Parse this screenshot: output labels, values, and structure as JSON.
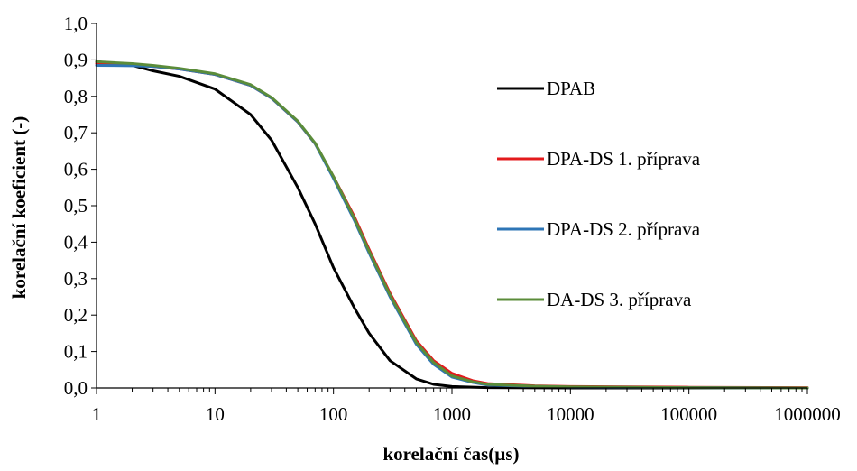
{
  "chart_data": {
    "type": "line",
    "title": "",
    "xlabel": "korelační čas(µs)",
    "ylabel": "korelační koeficient (-)",
    "x_scale": "log",
    "xlim": [
      1,
      1000000
    ],
    "ylim": [
      0,
      1
    ],
    "x_ticks": [
      "1",
      "10",
      "100",
      "1000",
      "10000",
      "100000",
      "1000000"
    ],
    "y_ticks": [
      "0,0",
      "0,1",
      "0,2",
      "0,3",
      "0,4",
      "0,5",
      "0,6",
      "0,7",
      "0,8",
      "0,9",
      "1,0"
    ],
    "grid": false,
    "legend_position": "right",
    "series": [
      {
        "name": "DPAB",
        "color": "#000000",
        "points": [
          [
            1,
            0.895
          ],
          [
            2,
            0.885
          ],
          [
            3,
            0.87
          ],
          [
            5,
            0.855
          ],
          [
            10,
            0.82
          ],
          [
            20,
            0.75
          ],
          [
            30,
            0.68
          ],
          [
            50,
            0.55
          ],
          [
            70,
            0.45
          ],
          [
            100,
            0.33
          ],
          [
            150,
            0.22
          ],
          [
            200,
            0.15
          ],
          [
            300,
            0.075
          ],
          [
            500,
            0.025
          ],
          [
            700,
            0.01
          ],
          [
            1000,
            0.004
          ],
          [
            2000,
            0.001
          ],
          [
            10000,
            0.0
          ],
          [
            1000000,
            0.0
          ]
        ]
      },
      {
        "name": "DPA-DS 1. příprava",
        "color": "#e31a1c",
        "points": [
          [
            1,
            0.89
          ],
          [
            2,
            0.887
          ],
          [
            3,
            0.882
          ],
          [
            5,
            0.875
          ],
          [
            10,
            0.86
          ],
          [
            20,
            0.83
          ],
          [
            30,
            0.795
          ],
          [
            50,
            0.73
          ],
          [
            70,
            0.67
          ],
          [
            100,
            0.58
          ],
          [
            150,
            0.47
          ],
          [
            200,
            0.38
          ],
          [
            300,
            0.26
          ],
          [
            500,
            0.13
          ],
          [
            700,
            0.075
          ],
          [
            1000,
            0.04
          ],
          [
            1500,
            0.02
          ],
          [
            2000,
            0.012
          ],
          [
            5000,
            0.006
          ],
          [
            10000,
            0.004
          ],
          [
            100000,
            0.002
          ],
          [
            1000000,
            0.001
          ]
        ]
      },
      {
        "name": "DPA-DS 2. příprava",
        "color": "#2e75b6",
        "points": [
          [
            1,
            0.885
          ],
          [
            2,
            0.884
          ],
          [
            3,
            0.882
          ],
          [
            5,
            0.875
          ],
          [
            10,
            0.86
          ],
          [
            20,
            0.83
          ],
          [
            30,
            0.795
          ],
          [
            50,
            0.73
          ],
          [
            70,
            0.67
          ],
          [
            100,
            0.575
          ],
          [
            150,
            0.46
          ],
          [
            200,
            0.37
          ],
          [
            300,
            0.25
          ],
          [
            500,
            0.12
          ],
          [
            700,
            0.065
          ],
          [
            1000,
            0.03
          ],
          [
            1500,
            0.015
          ],
          [
            2000,
            0.008
          ],
          [
            5000,
            0.004
          ],
          [
            10000,
            0.002
          ],
          [
            100000,
            0.001
          ],
          [
            1000000,
            0.0
          ]
        ]
      },
      {
        "name": "DA-DS 3. příprava",
        "color": "#5b8c3a",
        "points": [
          [
            1,
            0.895
          ],
          [
            2,
            0.89
          ],
          [
            3,
            0.885
          ],
          [
            5,
            0.877
          ],
          [
            10,
            0.862
          ],
          [
            20,
            0.832
          ],
          [
            30,
            0.797
          ],
          [
            50,
            0.732
          ],
          [
            70,
            0.672
          ],
          [
            100,
            0.58
          ],
          [
            150,
            0.465
          ],
          [
            200,
            0.375
          ],
          [
            300,
            0.255
          ],
          [
            500,
            0.125
          ],
          [
            700,
            0.07
          ],
          [
            1000,
            0.033
          ],
          [
            1500,
            0.017
          ],
          [
            2000,
            0.01
          ],
          [
            5000,
            0.005
          ],
          [
            10000,
            0.003
          ],
          [
            100000,
            0.001
          ],
          [
            1000000,
            0.0
          ]
        ]
      }
    ]
  }
}
